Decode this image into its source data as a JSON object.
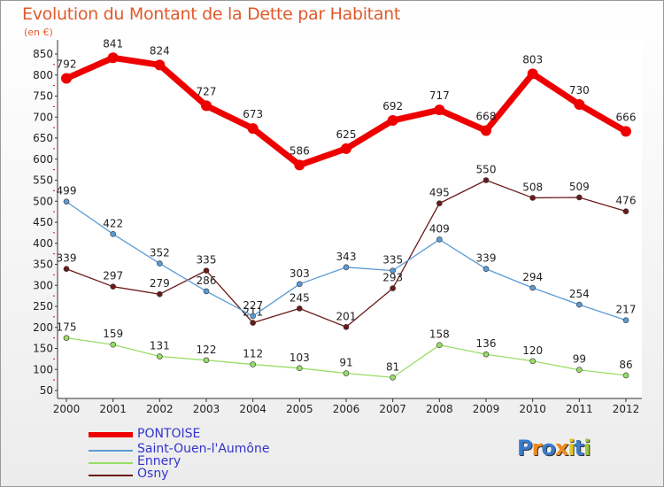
{
  "title": "Evolution du Montant de la Dette par Habitant",
  "unit": "(en €)",
  "logo": {
    "text": "Proxiti",
    "colors": [
      "#3a79c9",
      "#f08a1c",
      "#3a79c9",
      "#f08a1c",
      "#e3c61e",
      "#3a79c9",
      "#9cc73a"
    ]
  },
  "chart_data": {
    "type": "line",
    "title": "Evolution du Montant de la Dette par Habitant",
    "ylabel": "(en €)",
    "x": [
      "2000",
      "2001",
      "2002",
      "2003",
      "2004",
      "2005",
      "2006",
      "2007",
      "2008",
      "2009",
      "2010",
      "2011",
      "2012"
    ],
    "ylim": [
      50,
      850
    ],
    "yticks": [
      50,
      100,
      150,
      200,
      250,
      300,
      350,
      400,
      450,
      500,
      550,
      600,
      650,
      700,
      750,
      800,
      850
    ],
    "grid": false,
    "legend": "bottom-left",
    "series": [
      {
        "name": "PONTOISE",
        "color": "#ee0000",
        "values": [
          792,
          841,
          824,
          727,
          673,
          586,
          625,
          692,
          717,
          668,
          803,
          730,
          666
        ]
      },
      {
        "name": "Saint-Ouen-l'Aumône",
        "color": "#5a9bd5",
        "values": [
          499,
          422,
          352,
          286,
          227,
          303,
          343,
          335,
          409,
          339,
          294,
          254,
          217
        ]
      },
      {
        "name": "Ennery",
        "color": "#99dd66",
        "values": [
          175,
          159,
          131,
          122,
          112,
          103,
          91,
          81,
          158,
          136,
          120,
          99,
          86
        ]
      },
      {
        "name": "Osny",
        "color": "#6b1a1a",
        "values": [
          339,
          297,
          279,
          335,
          211,
          245,
          201,
          293,
          495,
          550,
          508,
          509,
          476
        ]
      }
    ]
  }
}
